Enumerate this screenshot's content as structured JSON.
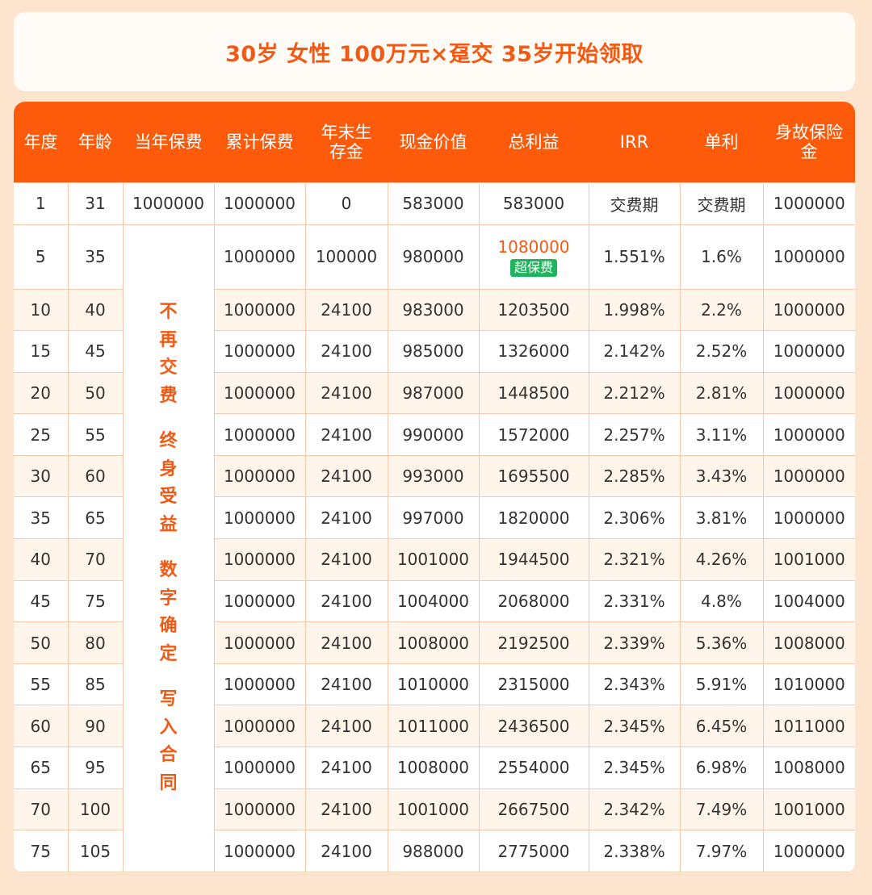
{
  "title": "30岁 女性 100万元×趸交 35岁开始领取",
  "columns": [
    "年度",
    "年龄",
    "当年保费",
    "累计保费",
    "年末生存金",
    "现金价值",
    "总利益",
    "IRR",
    "单利",
    "身故保险金"
  ],
  "header_lines": {
    "year": "年度",
    "age": "年龄",
    "premium": "当年保费",
    "cum_premium": "累计保费",
    "survival_1": "年末生",
    "survival_2": "存金",
    "cash_value": "现金价值",
    "total_benefit": "总利益",
    "irr": "IRR",
    "simple": "单利",
    "death_1": "身故保险",
    "death_2": "金"
  },
  "first_row": {
    "year": "1",
    "age": "31",
    "premium": "1000000",
    "cum": "1000000",
    "survival": "0",
    "cash": "583000",
    "total": "583000",
    "irr": "交费期",
    "simple": "交费期",
    "death": "1000000"
  },
  "slogan": [
    [
      "不",
      "再",
      "交",
      "费"
    ],
    [
      "终",
      "身",
      "受",
      "益"
    ],
    [
      "数",
      "字",
      "确",
      "定"
    ],
    [
      "写",
      "入",
      "合",
      "同"
    ]
  ],
  "highlight_row": {
    "year": "5",
    "age": "35",
    "cum": "1000000",
    "survival": "100000",
    "cash": "980000",
    "total": "1080000",
    "tag": "超保费",
    "irr": "1.551%",
    "simple": "1.6%",
    "death": "1000000"
  },
  "rows": [
    {
      "year": "10",
      "age": "40",
      "cum": "1000000",
      "survival": "24100",
      "cash": "983000",
      "total": "1203500",
      "irr": "1.998%",
      "simple": "2.2%",
      "death": "1000000"
    },
    {
      "year": "15",
      "age": "45",
      "cum": "1000000",
      "survival": "24100",
      "cash": "985000",
      "total": "1326000",
      "irr": "2.142%",
      "simple": "2.52%",
      "death": "1000000"
    },
    {
      "year": "20",
      "age": "50",
      "cum": "1000000",
      "survival": "24100",
      "cash": "987000",
      "total": "1448500",
      "irr": "2.212%",
      "simple": "2.81%",
      "death": "1000000"
    },
    {
      "year": "25",
      "age": "55",
      "cum": "1000000",
      "survival": "24100",
      "cash": "990000",
      "total": "1572000",
      "irr": "2.257%",
      "simple": "3.11%",
      "death": "1000000"
    },
    {
      "year": "30",
      "age": "60",
      "cum": "1000000",
      "survival": "24100",
      "cash": "993000",
      "total": "1695500",
      "irr": "2.285%",
      "simple": "3.43%",
      "death": "1000000"
    },
    {
      "year": "35",
      "age": "65",
      "cum": "1000000",
      "survival": "24100",
      "cash": "997000",
      "total": "1820000",
      "irr": "2.306%",
      "simple": "3.81%",
      "death": "1000000"
    },
    {
      "year": "40",
      "age": "70",
      "cum": "1000000",
      "survival": "24100",
      "cash": "1001000",
      "total": "1944500",
      "irr": "2.321%",
      "simple": "4.26%",
      "death": "1001000"
    },
    {
      "year": "45",
      "age": "75",
      "cum": "1000000",
      "survival": "24100",
      "cash": "1004000",
      "total": "2068000",
      "irr": "2.331%",
      "simple": "4.8%",
      "death": "1004000"
    },
    {
      "year": "50",
      "age": "80",
      "cum": "1000000",
      "survival": "24100",
      "cash": "1008000",
      "total": "2192500",
      "irr": "2.339%",
      "simple": "5.36%",
      "death": "1008000"
    },
    {
      "year": "55",
      "age": "85",
      "cum": "1000000",
      "survival": "24100",
      "cash": "1010000",
      "total": "2315000",
      "irr": "2.343%",
      "simple": "5.91%",
      "death": "1010000"
    },
    {
      "year": "60",
      "age": "90",
      "cum": "1000000",
      "survival": "24100",
      "cash": "1011000",
      "total": "2436500",
      "irr": "2.345%",
      "simple": "6.45%",
      "death": "1011000"
    },
    {
      "year": "65",
      "age": "95",
      "cum": "1000000",
      "survival": "24100",
      "cash": "1008000",
      "total": "2554000",
      "irr": "2.345%",
      "simple": "6.98%",
      "death": "1008000"
    },
    {
      "year": "70",
      "age": "100",
      "cum": "1000000",
      "survival": "24100",
      "cash": "1001000",
      "total": "2667500",
      "irr": "2.342%",
      "simple": "7.49%",
      "death": "1001000"
    },
    {
      "year": "75",
      "age": "105",
      "cum": "1000000",
      "survival": "24100",
      "cash": "988000",
      "total": "2775000",
      "irr": "2.338%",
      "simple": "7.97%",
      "death": "1000000"
    }
  ],
  "colors": {
    "accent": "#fd5a0a",
    "title_text": "#f15a14",
    "tag_green": "#1fb55d",
    "row_alt": "#fff5ea",
    "page_bg": "#fde4cf"
  }
}
